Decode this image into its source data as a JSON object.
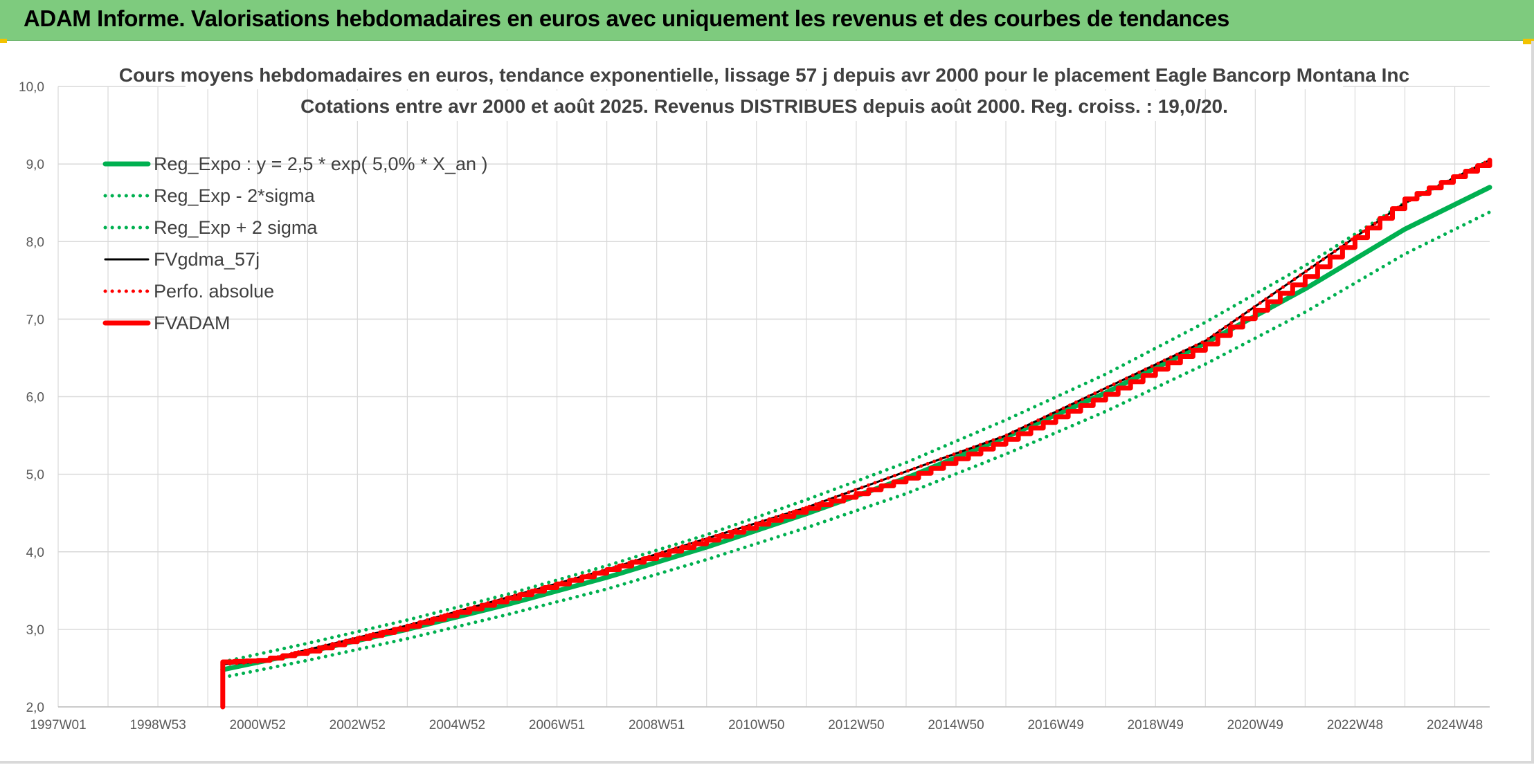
{
  "header": {
    "title": "ADAM Informe. Valorisations hebdomadaires en euros avec uniquement les revenus et des courbes de tendances"
  },
  "colors": {
    "banner": "#7ecb7e",
    "reg_expo": "#00b050",
    "fvadam": "#ff0000",
    "fvgdma": "#000000",
    "grid": "#d9d9d9"
  },
  "chart_data": {
    "type": "line",
    "title_line1": "Cours moyens hebdomadaires en euros, tendance exponentielle, lissage 57 j depuis avr 2000 pour le placement Eagle Bancorp Montana Inc",
    "title_line2": "Cotations entre avr 2000 et août 2025. Revenus DISTRIBUES depuis août 2000. Reg. croiss. : 19,0/20.",
    "ylim": [
      2.0,
      10.0
    ],
    "xlim": [
      1997.0,
      2025.7
    ],
    "y_ticks": [
      "2,0",
      "3,0",
      "4,0",
      "5,0",
      "6,0",
      "7,0",
      "8,0",
      "9,0",
      "10,0"
    ],
    "y_tick_values": [
      2,
      3,
      4,
      5,
      6,
      7,
      8,
      9,
      10
    ],
    "x_ticks": [
      "1997W01",
      "1998W53",
      "2000W52",
      "2002W52",
      "2004W52",
      "2006W51",
      "2008W51",
      "2010W50",
      "2012W50",
      "2014W50",
      "2016W49",
      "2018W49",
      "2020W49",
      "2022W48",
      "2024W48"
    ],
    "x_tick_values": [
      1997.0,
      1999.0,
      2001.0,
      2003.0,
      2005.0,
      2007.0,
      2009.0,
      2011.0,
      2013.0,
      2015.0,
      2017.0,
      2019.0,
      2021.0,
      2023.0,
      2025.0
    ],
    "legend_placement": "top-left",
    "grid": true,
    "series": [
      {
        "name": "Reg_Expo : y = 2,5 * exp( 5,0% *  X_an )",
        "style": "solid-thick",
        "color": "#00b050",
        "x": [
          2000.3,
          2002.0,
          2004.0,
          2006.0,
          2008.0,
          2010.0,
          2012.0,
          2014.0,
          2016.0,
          2018.0,
          2020.0,
          2022.0,
          2024.0,
          2025.7
        ],
        "y": [
          2.48,
          2.71,
          3.0,
          3.32,
          3.67,
          4.06,
          4.49,
          4.95,
          5.48,
          6.05,
          6.69,
          7.39,
          8.16,
          8.7
        ]
      },
      {
        "name": "Reg_Exp - 2*sigma",
        "style": "dotted",
        "color": "#00b050",
        "x": [
          2000.3,
          2002.0,
          2004.0,
          2006.0,
          2008.0,
          2010.0,
          2012.0,
          2014.0,
          2016.0,
          2018.0,
          2020.0,
          2022.0,
          2024.0,
          2025.7
        ],
        "y": [
          2.38,
          2.6,
          2.88,
          3.19,
          3.52,
          3.9,
          4.31,
          4.75,
          5.26,
          5.81,
          6.42,
          7.09,
          7.84,
          8.38
        ]
      },
      {
        "name": "Reg_Exp + 2 sigma",
        "style": "dotted",
        "color": "#00b050",
        "x": [
          2000.3,
          2002.0,
          2004.0,
          2006.0,
          2008.0,
          2010.0,
          2012.0,
          2014.0,
          2016.0,
          2018.0,
          2020.0,
          2022.0,
          2024.0,
          2025.7
        ],
        "y": [
          2.58,
          2.82,
          3.12,
          3.45,
          3.82,
          4.22,
          4.67,
          5.15,
          5.7,
          6.29,
          6.96,
          7.69,
          8.5,
          9.05
        ]
      },
      {
        "name": "FVgdma_57j",
        "style": "solid",
        "color": "#000000",
        "x": [
          2000.3,
          2001.0,
          2004.0,
          2008.0,
          2012.0,
          2016.0,
          2020.0,
          2024.0,
          2025.7
        ],
        "y": [
          2.55,
          2.58,
          3.05,
          3.77,
          4.57,
          5.5,
          6.72,
          8.5,
          9.05
        ]
      },
      {
        "name": "Perfo. absolue",
        "style": "dotted",
        "color": "#ff0000",
        "x": [
          2000.3,
          2001.0,
          2004.0,
          2008.0,
          2012.0,
          2016.0,
          2020.0,
          2024.0,
          2025.7
        ],
        "y": [
          2.55,
          2.58,
          3.05,
          3.77,
          4.57,
          5.5,
          6.72,
          8.5,
          9.05
        ]
      },
      {
        "name": "FVADAM",
        "style": "solid-thick-stepped",
        "color": "#ff0000",
        "x": [
          2000.3,
          2000.3,
          2001.0,
          2002.0,
          2004.0,
          2006.0,
          2008.0,
          2010.0,
          2012.0,
          2013.0,
          2014.0,
          2016.0,
          2018.0,
          2020.0,
          2022.0,
          2024.0,
          2025.7
        ],
        "y": [
          2.0,
          2.58,
          2.6,
          2.72,
          3.04,
          3.4,
          3.77,
          4.15,
          4.56,
          4.75,
          4.95,
          5.45,
          6.03,
          6.68,
          7.55,
          8.55,
          9.05
        ]
      }
    ]
  }
}
